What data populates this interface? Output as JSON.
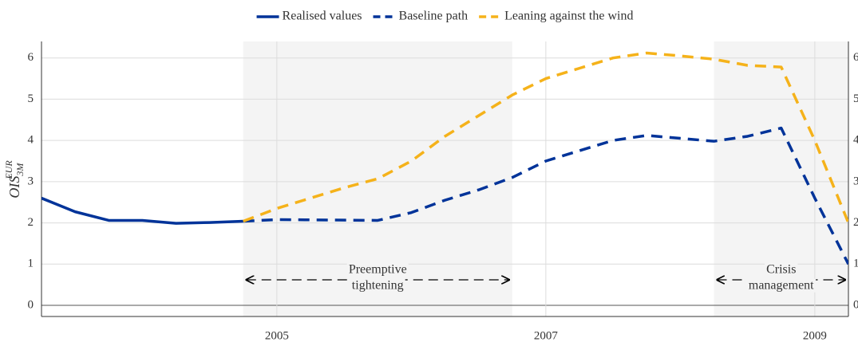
{
  "chart_data": {
    "type": "line",
    "ylabel": {
      "base": "OIS",
      "sup": "EUR",
      "sub": "3M"
    },
    "xlim": [
      2003.25,
      2009.25
    ],
    "xticks": [
      2005,
      2007,
      2009
    ],
    "ylim": [
      -0.27,
      6.4
    ],
    "yticks": [
      0,
      1,
      2,
      3,
      4,
      5,
      6
    ],
    "y2lim": [
      -0.27,
      6.4
    ],
    "y2ticks": [
      0,
      1,
      2,
      3,
      4,
      5,
      6
    ],
    "grid": true,
    "legend": "top",
    "shaded_periods": [
      {
        "start": 2004.75,
        "end": 2006.75,
        "label": [
          "Preemptive",
          "tightening"
        ],
        "color": "#f4f4f4"
      },
      {
        "start": 2008.25,
        "end": 2009.25,
        "label": [
          "Crisis",
          "management"
        ],
        "color": "#f4f4f4"
      }
    ],
    "series": [
      {
        "name": "Realised values",
        "color": "#003399",
        "dash": false,
        "x": [
          2003.25,
          2003.5,
          2003.75,
          2004.0,
          2004.25,
          2004.5,
          2004.75
        ],
        "values": [
          2.6,
          2.27,
          2.06,
          2.06,
          1.99,
          2.01,
          2.04
        ]
      },
      {
        "name": "Baseline path",
        "color": "#003399",
        "dash": true,
        "x": [
          2004.75,
          2005.0,
          2005.75,
          2006.0,
          2006.25,
          2006.5,
          2006.75,
          2007.0,
          2007.25,
          2007.5,
          2007.75,
          2008.0,
          2008.25,
          2008.5,
          2008.75,
          2009.0,
          2009.25
        ],
        "values": [
          2.04,
          2.08,
          2.06,
          2.25,
          2.55,
          2.8,
          3.1,
          3.5,
          3.75,
          4.0,
          4.12,
          4.05,
          3.98,
          4.1,
          4.3,
          2.6,
          1.0
        ]
      },
      {
        "name": "Leaning against the wind",
        "color": "#f5b21a",
        "dash": true,
        "x": [
          2004.75,
          2005.0,
          2005.25,
          2005.5,
          2005.75,
          2006.0,
          2006.25,
          2006.5,
          2006.75,
          2007.0,
          2007.25,
          2007.5,
          2007.75,
          2008.0,
          2008.25,
          2008.5,
          2008.75,
          2009.0,
          2009.25
        ],
        "values": [
          2.04,
          2.35,
          2.6,
          2.85,
          3.07,
          3.5,
          4.1,
          4.6,
          5.1,
          5.5,
          5.75,
          6.0,
          6.12,
          6.05,
          5.97,
          5.82,
          5.78,
          4.0,
          2.0
        ]
      }
    ]
  }
}
